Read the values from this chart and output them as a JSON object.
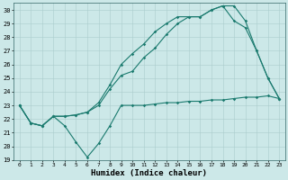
{
  "xlabel": "Humidex (Indice chaleur)",
  "bg_color": "#cce8e8",
  "grid_color": "#aacccc",
  "line_color": "#1a7a6e",
  "xlim": [
    -0.5,
    23.5
  ],
  "ylim": [
    19,
    30.5
  ],
  "yticks": [
    19,
    20,
    21,
    22,
    23,
    24,
    25,
    26,
    27,
    28,
    29,
    30
  ],
  "xticks": [
    0,
    1,
    2,
    3,
    4,
    5,
    6,
    7,
    8,
    9,
    10,
    11,
    12,
    13,
    14,
    15,
    16,
    17,
    18,
    19,
    20,
    21,
    22,
    23
  ],
  "line1_x": [
    0,
    1,
    2,
    3,
    4,
    5,
    6,
    7,
    8,
    9,
    10,
    11,
    12,
    13,
    14,
    15,
    16,
    17,
    18,
    19,
    20,
    21,
    22,
    23
  ],
  "line1_y": [
    23.0,
    21.7,
    21.5,
    22.2,
    21.5,
    20.3,
    19.2,
    20.2,
    21.5,
    23.0,
    23.0,
    23.0,
    23.1,
    23.2,
    23.2,
    23.3,
    23.3,
    23.4,
    23.4,
    23.5,
    23.6,
    23.6,
    23.7,
    23.5
  ],
  "line2_x": [
    0,
    1,
    2,
    3,
    4,
    5,
    6,
    7,
    8,
    9,
    10,
    11,
    12,
    13,
    14,
    15,
    16,
    17,
    18,
    19,
    20,
    21,
    22,
    23
  ],
  "line2_y": [
    23.0,
    21.7,
    21.5,
    22.2,
    22.2,
    22.3,
    22.5,
    23.0,
    24.2,
    25.2,
    25.5,
    26.5,
    27.2,
    28.2,
    29.0,
    29.5,
    29.5,
    30.0,
    30.3,
    29.2,
    28.7,
    27.0,
    25.0,
    23.5
  ],
  "line3_x": [
    0,
    1,
    2,
    3,
    4,
    5,
    6,
    7,
    8,
    9,
    10,
    11,
    12,
    13,
    14,
    15,
    16,
    17,
    18,
    19,
    20,
    21,
    22,
    23
  ],
  "line3_y": [
    23.0,
    21.7,
    21.5,
    22.2,
    22.2,
    22.3,
    22.5,
    23.2,
    24.5,
    26.0,
    26.8,
    27.5,
    28.4,
    29.0,
    29.5,
    29.5,
    29.5,
    30.0,
    30.3,
    30.3,
    29.2,
    27.0,
    25.0,
    23.5
  ]
}
